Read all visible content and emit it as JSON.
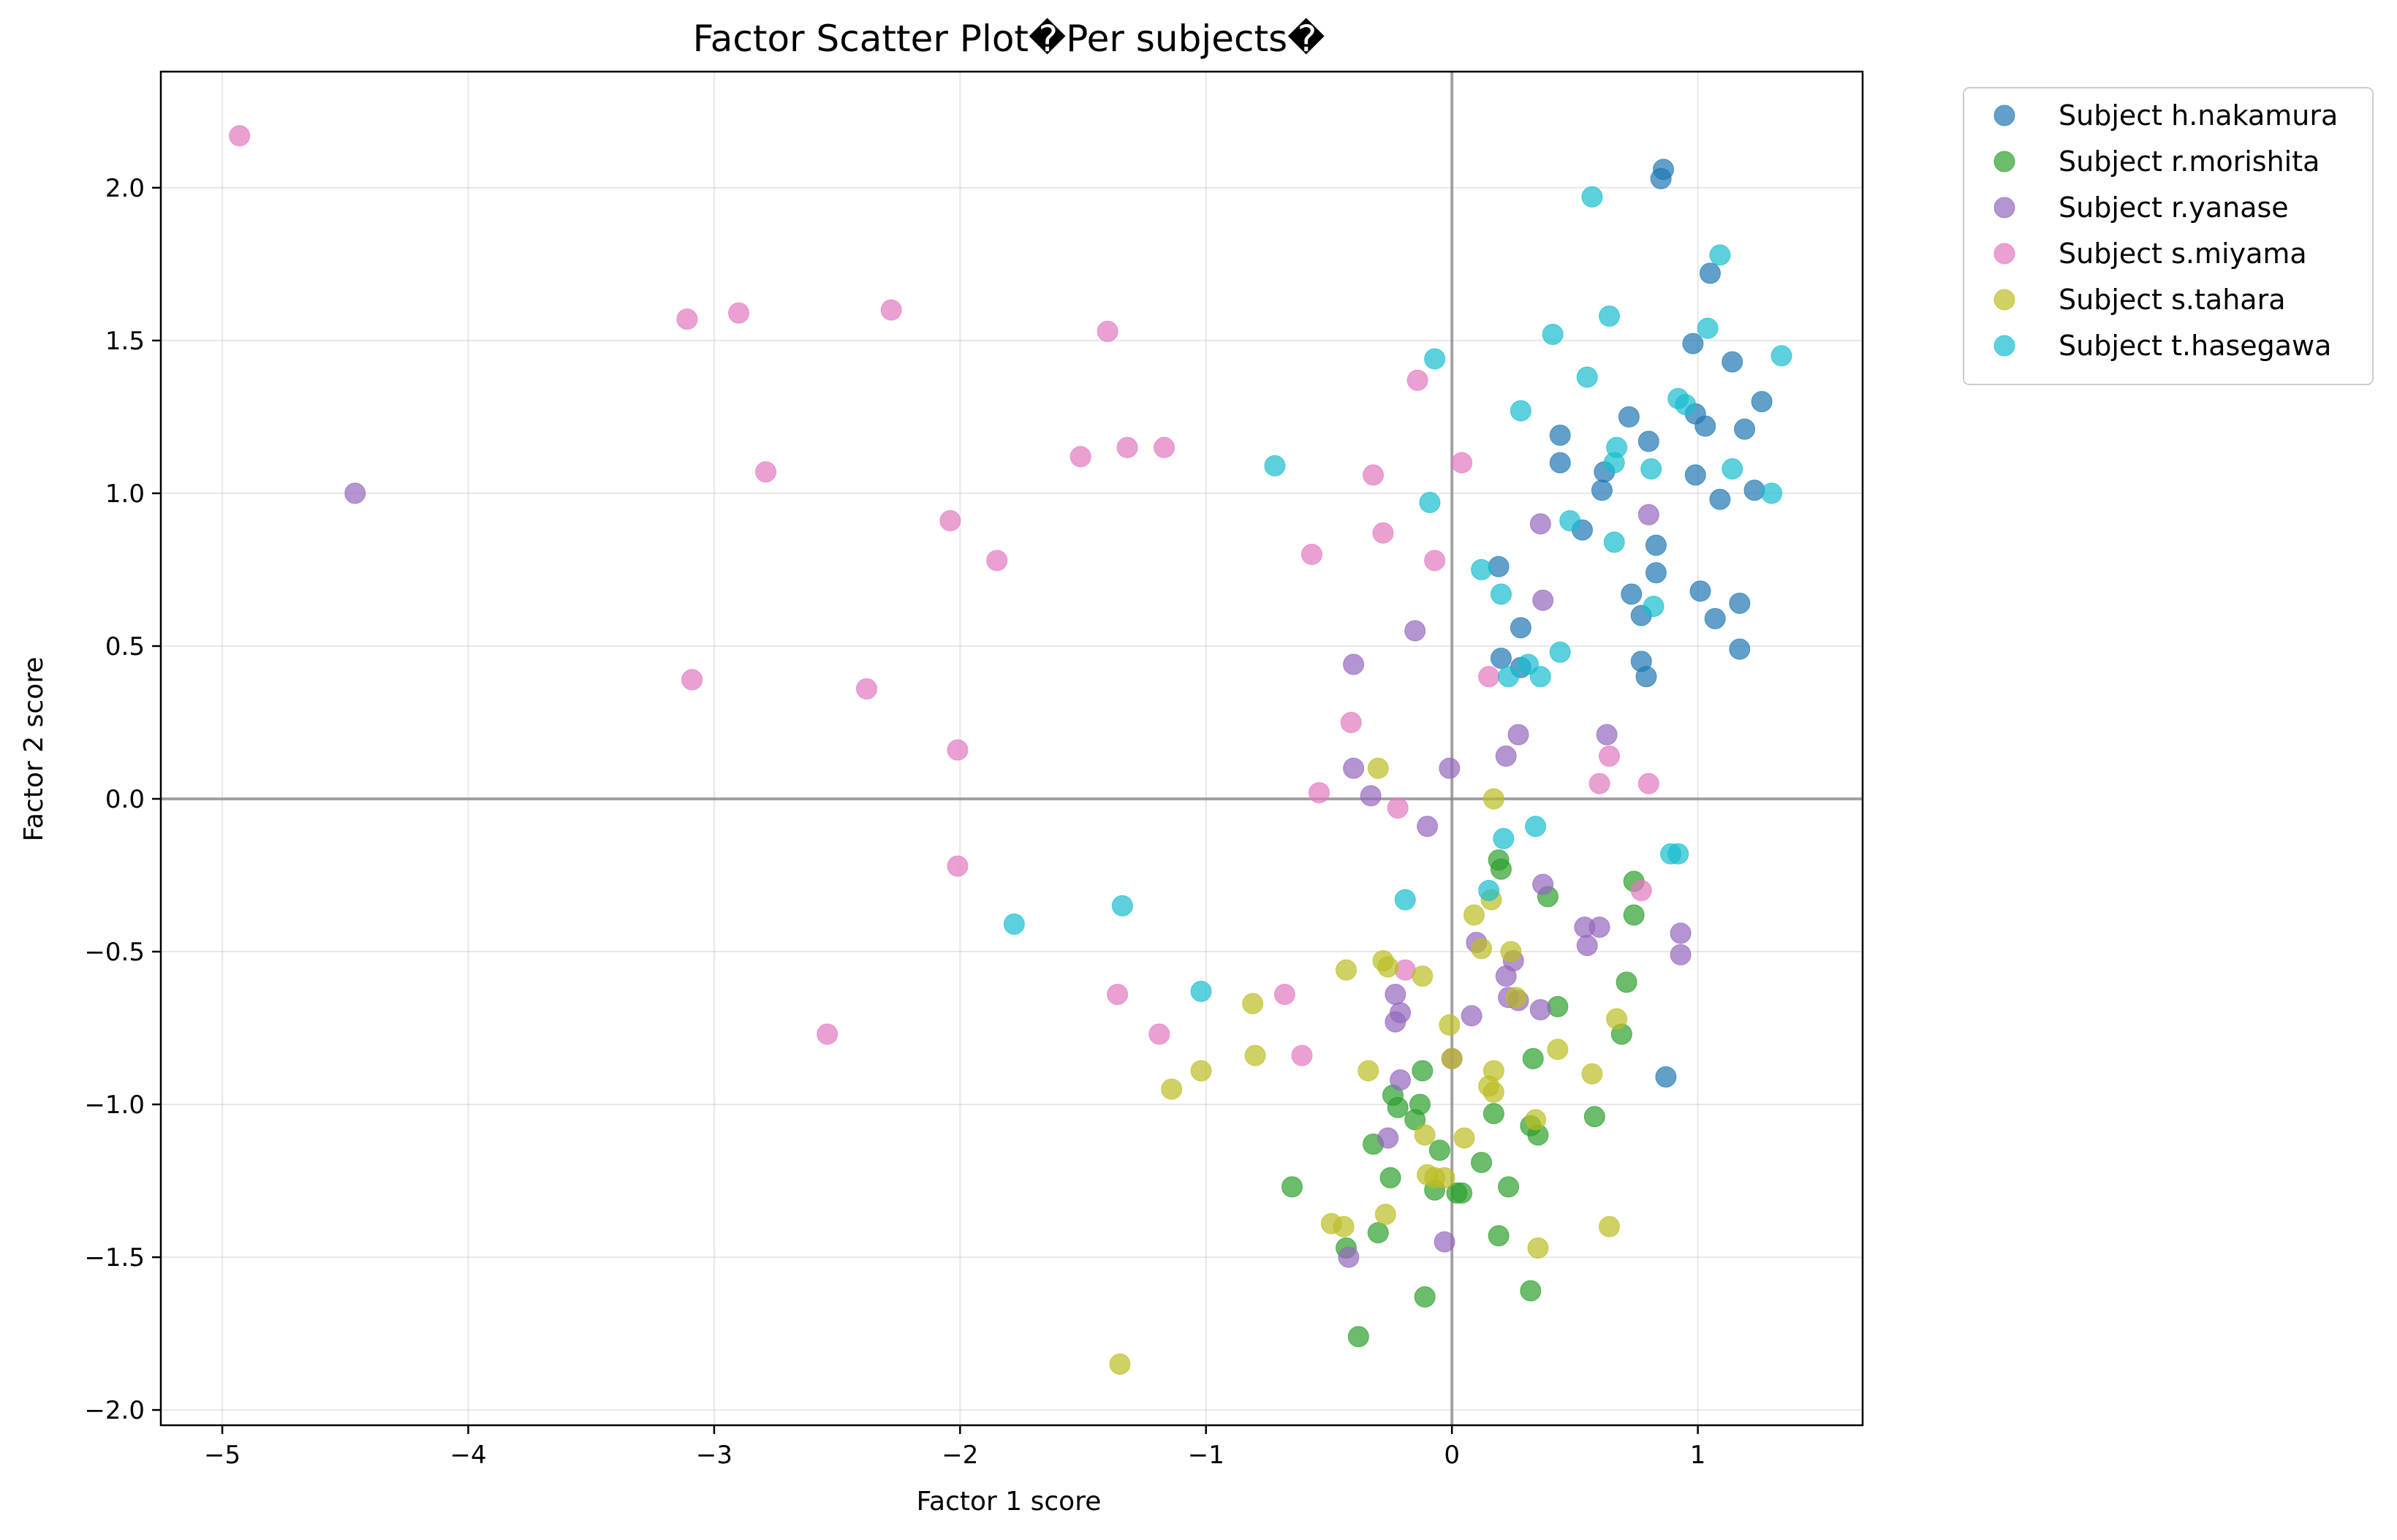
{
  "chart_data": {
    "type": "scatter",
    "title": "Factor Scatter Plot�Per subjects�",
    "xlabel": "Factor 1 score",
    "ylabel": "Factor 2 score",
    "xlim": [
      -5.25,
      1.67
    ],
    "ylim": [
      -2.05,
      2.38
    ],
    "xticks": [
      -5,
      -4,
      -3,
      -2,
      -1,
      0,
      1
    ],
    "xtick_labels": [
      "−5",
      "−4",
      "−3",
      "−2",
      "−1",
      "0",
      "1"
    ],
    "yticks": [
      -2.0,
      -1.5,
      -1.0,
      -0.5,
      0.0,
      0.5,
      1.0,
      1.5,
      2.0
    ],
    "ytick_labels": [
      "−2.0",
      "−1.5",
      "−1.0",
      "−0.5",
      "0.0",
      "0.5",
      "1.0",
      "1.5",
      "2.0"
    ],
    "grid": true,
    "zero_lines": true,
    "legend_position": "outside-top-right",
    "series": [
      {
        "name": "Subject h.nakamura",
        "color": "#1f77b4",
        "points": [
          [
            0.86,
            2.06
          ],
          [
            0.85,
            2.03
          ],
          [
            1.05,
            1.72
          ],
          [
            0.98,
            1.49
          ],
          [
            1.14,
            1.43
          ],
          [
            1.26,
            1.3
          ],
          [
            0.72,
            1.25
          ],
          [
            0.99,
            1.26
          ],
          [
            1.03,
            1.22
          ],
          [
            1.19,
            1.21
          ],
          [
            0.44,
            1.19
          ],
          [
            0.8,
            1.17
          ],
          [
            0.44,
            1.1
          ],
          [
            0.62,
            1.07
          ],
          [
            0.99,
            1.06
          ],
          [
            1.23,
            1.01
          ],
          [
            0.61,
            1.01
          ],
          [
            1.09,
            0.98
          ],
          [
            0.53,
            0.88
          ],
          [
            0.83,
            0.83
          ],
          [
            0.19,
            0.76
          ],
          [
            0.83,
            0.74
          ],
          [
            0.73,
            0.67
          ],
          [
            1.01,
            0.68
          ],
          [
            1.17,
            0.64
          ],
          [
            0.77,
            0.6
          ],
          [
            1.07,
            0.59
          ],
          [
            0.28,
            0.56
          ],
          [
            1.17,
            0.49
          ],
          [
            0.2,
            0.46
          ],
          [
            0.28,
            0.43
          ],
          [
            0.77,
            0.45
          ],
          [
            0.79,
            0.4
          ],
          [
            0.87,
            -0.91
          ]
        ]
      },
      {
        "name": "Subject r.morishita",
        "color": "#2ca02c",
        "points": [
          [
            0.19,
            -0.2
          ],
          [
            0.2,
            -0.23
          ],
          [
            0.74,
            -0.27
          ],
          [
            0.39,
            -0.32
          ],
          [
            0.74,
            -0.38
          ],
          [
            0.71,
            -0.6
          ],
          [
            0.43,
            -0.68
          ],
          [
            0.69,
            -0.77
          ],
          [
            0.33,
            -0.85
          ],
          [
            -0.12,
            -0.89
          ],
          [
            -0.24,
            -0.97
          ],
          [
            -0.13,
            -1.0
          ],
          [
            -0.22,
            -1.01
          ],
          [
            -0.15,
            -1.05
          ],
          [
            0.17,
            -1.03
          ],
          [
            0.58,
            -1.04
          ],
          [
            0.32,
            -1.07
          ],
          [
            0.35,
            -1.1
          ],
          [
            -0.32,
            -1.13
          ],
          [
            -0.05,
            -1.15
          ],
          [
            0.12,
            -1.19
          ],
          [
            -0.25,
            -1.24
          ],
          [
            0.23,
            -1.27
          ],
          [
            -0.65,
            -1.27
          ],
          [
            -0.07,
            -1.28
          ],
          [
            0.02,
            -1.29
          ],
          [
            0.04,
            -1.29
          ],
          [
            -0.3,
            -1.42
          ],
          [
            0.19,
            -1.43
          ],
          [
            -0.43,
            -1.47
          ],
          [
            0.32,
            -1.61
          ],
          [
            -0.11,
            -1.63
          ],
          [
            -0.38,
            -1.76
          ]
        ]
      },
      {
        "name": "Subject r.yanase",
        "color": "#9467bd",
        "points": [
          [
            -4.46,
            1.0
          ],
          [
            0.8,
            0.93
          ],
          [
            0.36,
            0.9
          ],
          [
            0.37,
            0.65
          ],
          [
            -0.15,
            0.55
          ],
          [
            -0.4,
            0.44
          ],
          [
            0.63,
            0.21
          ],
          [
            0.27,
            0.21
          ],
          [
            0.22,
            0.14
          ],
          [
            -0.4,
            0.1
          ],
          [
            -0.01,
            0.1
          ],
          [
            -0.33,
            0.01
          ],
          [
            -0.1,
            -0.09
          ],
          [
            0.37,
            -0.28
          ],
          [
            0.54,
            -0.42
          ],
          [
            0.6,
            -0.42
          ],
          [
            0.93,
            -0.44
          ],
          [
            0.1,
            -0.47
          ],
          [
            0.55,
            -0.48
          ],
          [
            0.93,
            -0.51
          ],
          [
            0.25,
            -0.53
          ],
          [
            0.22,
            -0.58
          ],
          [
            -0.23,
            -0.64
          ],
          [
            0.23,
            -0.65
          ],
          [
            0.27,
            -0.66
          ],
          [
            0.36,
            -0.69
          ],
          [
            -0.21,
            -0.7
          ],
          [
            0.08,
            -0.71
          ],
          [
            -0.23,
            -0.73
          ],
          [
            0.0,
            -0.85
          ],
          [
            -0.21,
            -0.92
          ],
          [
            -0.26,
            -1.11
          ],
          [
            -0.03,
            -1.45
          ],
          [
            -0.42,
            -1.5
          ]
        ]
      },
      {
        "name": "Subject s.miyama",
        "color": "#e377c2",
        "points": [
          [
            -4.93,
            2.17
          ],
          [
            -2.28,
            1.6
          ],
          [
            -2.9,
            1.59
          ],
          [
            -3.11,
            1.57
          ],
          [
            -1.4,
            1.53
          ],
          [
            -0.14,
            1.37
          ],
          [
            -1.32,
            1.15
          ],
          [
            -1.17,
            1.15
          ],
          [
            -1.51,
            1.12
          ],
          [
            -2.79,
            1.07
          ],
          [
            0.04,
            1.1
          ],
          [
            -0.32,
            1.06
          ],
          [
            -2.04,
            0.91
          ],
          [
            -0.28,
            0.87
          ],
          [
            -1.85,
            0.78
          ],
          [
            -0.57,
            0.8
          ],
          [
            -0.07,
            0.78
          ],
          [
            0.15,
            0.4
          ],
          [
            -3.09,
            0.39
          ],
          [
            -2.38,
            0.36
          ],
          [
            -0.41,
            0.25
          ],
          [
            -2.01,
            0.16
          ],
          [
            0.64,
            0.14
          ],
          [
            0.6,
            0.05
          ],
          [
            0.8,
            0.05
          ],
          [
            -0.54,
            0.02
          ],
          [
            -0.22,
            -0.03
          ],
          [
            -2.01,
            -0.22
          ],
          [
            0.77,
            -0.3
          ],
          [
            -0.19,
            -0.56
          ],
          [
            -1.36,
            -0.64
          ],
          [
            -0.68,
            -0.64
          ],
          [
            -1.19,
            -0.77
          ],
          [
            -2.54,
            -0.77
          ],
          [
            -0.61,
            -0.84
          ]
        ]
      },
      {
        "name": "Subject s.tahara",
        "color": "#bcbd22",
        "points": [
          [
            -0.3,
            0.1
          ],
          [
            0.17,
            0.0
          ],
          [
            0.16,
            -0.33
          ],
          [
            0.09,
            -0.38
          ],
          [
            0.12,
            -0.49
          ],
          [
            0.24,
            -0.5
          ],
          [
            -0.28,
            -0.53
          ],
          [
            -0.26,
            -0.55
          ],
          [
            -0.43,
            -0.56
          ],
          [
            -0.12,
            -0.58
          ],
          [
            0.26,
            -0.65
          ],
          [
            -0.81,
            -0.67
          ],
          [
            0.67,
            -0.72
          ],
          [
            -0.01,
            -0.74
          ],
          [
            0.43,
            -0.82
          ],
          [
            -0.8,
            -0.84
          ],
          [
            0.0,
            -0.85
          ],
          [
            0.17,
            -0.89
          ],
          [
            -0.34,
            -0.89
          ],
          [
            0.57,
            -0.9
          ],
          [
            -1.02,
            -0.89
          ],
          [
            -1.14,
            -0.95
          ],
          [
            0.15,
            -0.94
          ],
          [
            0.17,
            -0.96
          ],
          [
            0.34,
            -1.05
          ],
          [
            -0.11,
            -1.1
          ],
          [
            0.05,
            -1.11
          ],
          [
            -0.1,
            -1.23
          ],
          [
            -0.07,
            -1.24
          ],
          [
            -0.03,
            -1.24
          ],
          [
            -0.27,
            -1.36
          ],
          [
            -0.49,
            -1.39
          ],
          [
            -0.44,
            -1.4
          ],
          [
            0.64,
            -1.4
          ],
          [
            0.35,
            -1.47
          ],
          [
            -1.35,
            -1.85
          ]
        ]
      },
      {
        "name": "Subject t.hasegawa",
        "color": "#17becf",
        "points": [
          [
            0.57,
            1.97
          ],
          [
            1.09,
            1.78
          ],
          [
            0.64,
            1.58
          ],
          [
            1.04,
            1.54
          ],
          [
            0.41,
            1.52
          ],
          [
            1.34,
            1.45
          ],
          [
            -0.07,
            1.44
          ],
          [
            0.55,
            1.38
          ],
          [
            0.92,
            1.31
          ],
          [
            0.95,
            1.29
          ],
          [
            0.28,
            1.27
          ],
          [
            0.67,
            1.15
          ],
          [
            1.14,
            1.08
          ],
          [
            0.66,
            1.1
          ],
          [
            0.81,
            1.08
          ],
          [
            -0.72,
            1.09
          ],
          [
            1.3,
            1.0
          ],
          [
            -0.09,
            0.97
          ],
          [
            0.48,
            0.91
          ],
          [
            0.66,
            0.84
          ],
          [
            0.12,
            0.75
          ],
          [
            0.2,
            0.67
          ],
          [
            0.82,
            0.63
          ],
          [
            0.44,
            0.48
          ],
          [
            0.31,
            0.44
          ],
          [
            0.23,
            0.4
          ],
          [
            0.36,
            0.4
          ],
          [
            0.34,
            -0.09
          ],
          [
            0.21,
            -0.13
          ],
          [
            0.92,
            -0.18
          ],
          [
            0.89,
            -0.18
          ],
          [
            0.15,
            -0.3
          ],
          [
            -0.19,
            -0.33
          ],
          [
            -1.34,
            -0.35
          ],
          [
            -1.78,
            -0.41
          ],
          [
            -1.02,
            -0.63
          ]
        ]
      }
    ]
  }
}
